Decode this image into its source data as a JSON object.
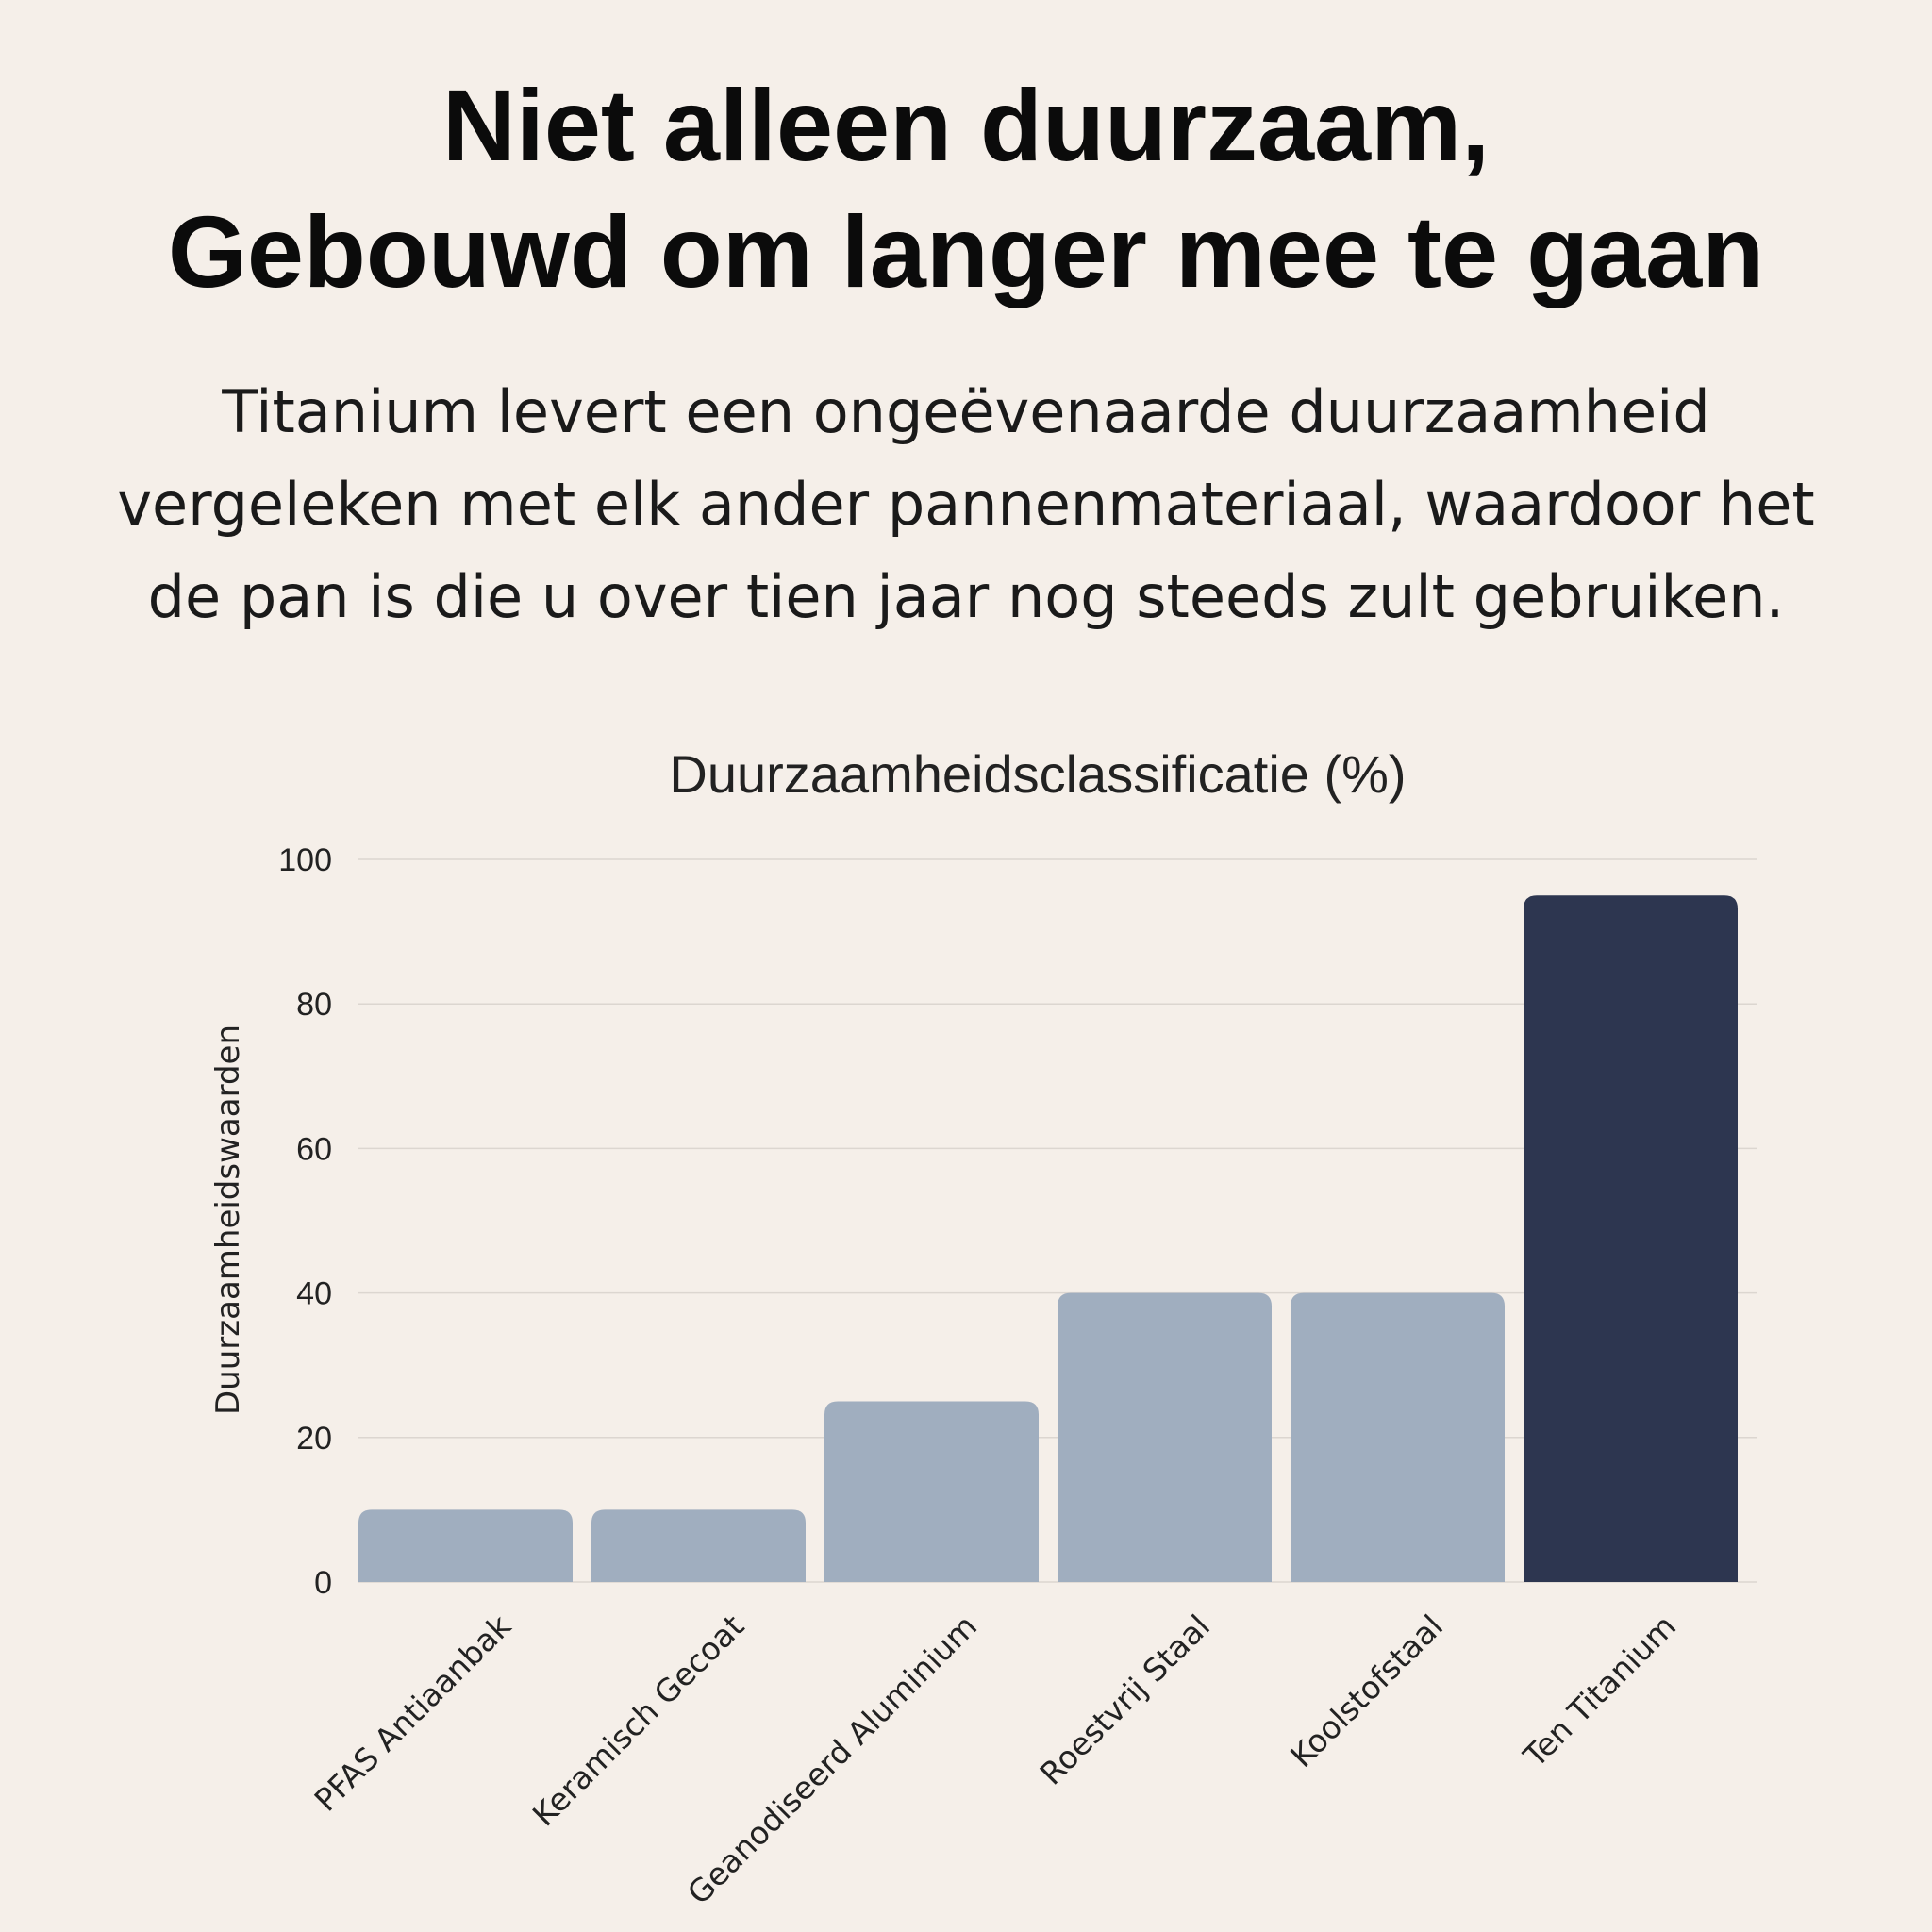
{
  "header": {
    "title_line1": "Niet alleen duurzaam,",
    "title_line2": "Gebouwd om langer mee te gaan",
    "subtitle_line1": "Titanium levert een ongeëvenaarde duurzaamheid",
    "subtitle_line2": "vergeleken met elk ander pannenmateriaal, waardoor het",
    "subtitle_line3": "de pan is die u over tien jaar nog steeds zult gebruiken."
  },
  "chart_data": {
    "type": "bar",
    "title": "Duurzaamheidsclassificatie (%)",
    "xlabel": "",
    "ylabel": "Duurzaamheidswaarden",
    "categories": [
      "PFAS Antiaanbak",
      "Keramisch Gecoat",
      "Geanodiseerd Aluminium",
      "Roestvrij Staal",
      "Koolstofstaal",
      "Ten Titanium"
    ],
    "values": [
      10,
      10,
      25,
      40,
      40,
      95
    ],
    "ylim": [
      0,
      100
    ],
    "yticks": [
      0,
      20,
      40,
      60,
      80,
      100
    ],
    "grid": true,
    "legend": "none",
    "colors": {
      "default_bar": "#a0aebf",
      "highlight_bar": "#2d3650",
      "gridline": "#dcd6d0",
      "text": "#222222"
    },
    "highlight_index": 5
  }
}
